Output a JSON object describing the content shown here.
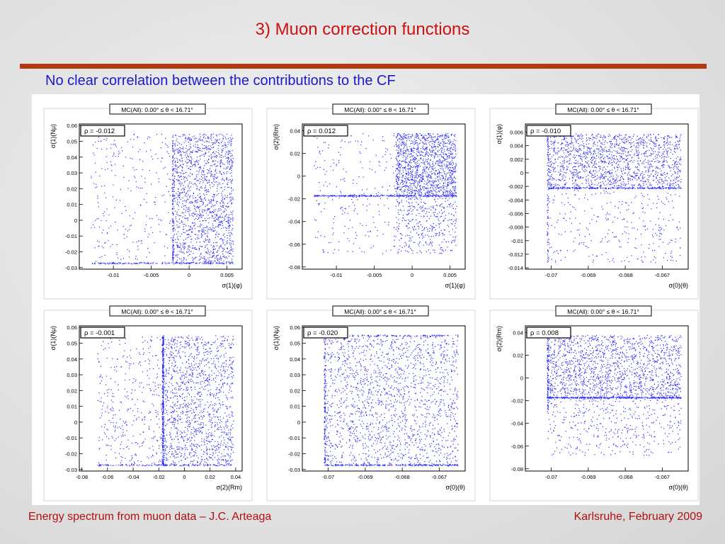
{
  "slide": {
    "title": "3) Muon correction functions",
    "subtitle": "No clear correlation between the contributions to the CF",
    "footer_left": "Energy spectrum from muon data – J.C. Arteaga",
    "footer_right": "Karlsruhe,  February 2009"
  },
  "colors": {
    "title": "#cc1111",
    "subtitle": "#1a1acc",
    "rule": "#b13a12",
    "points": "#2b2bff"
  },
  "chart_data": [
    {
      "type": "scatter",
      "header": "MC(All): 0.00° ≤ θ < 16.71°",
      "rho": "ρ = -0.012",
      "xlabel": "σ(1)(φ)",
      "ylabel": "σ(1)(Nμ)",
      "xlim": [
        -0.0145,
        0.007
      ],
      "ylim": [
        -0.031,
        0.061
      ],
      "xticks": [
        {
          "v": -0.01,
          "t": "-0.01"
        },
        {
          "v": -0.005,
          "t": "-0.005"
        },
        {
          "v": 0,
          "t": "0"
        },
        {
          "v": 0.005,
          "t": "0.005"
        }
      ],
      "yticks": [
        {
          "v": -0.03,
          "t": "-0.03"
        },
        {
          "v": -0.02,
          "t": "-0.02"
        },
        {
          "v": -0.01,
          "t": "-0.01"
        },
        {
          "v": 0,
          "t": "0"
        },
        {
          "v": 0.01,
          "t": "0.01"
        },
        {
          "v": 0.02,
          "t": "0.02"
        },
        {
          "v": 0.03,
          "t": "0.03"
        },
        {
          "v": 0.04,
          "t": "0.04"
        },
        {
          "v": 0.05,
          "t": "0.05"
        },
        {
          "v": 0.06,
          "t": "0.06"
        }
      ],
      "regions": [
        {
          "x": [
            -0.0022,
            0.0058
          ],
          "y": [
            -0.027,
            0.055
          ],
          "n": 1500
        },
        {
          "x": [
            -0.013,
            -0.0022
          ],
          "y": [
            -0.027,
            0.055
          ],
          "n": 260
        }
      ],
      "bands": [
        {
          "x": [
            -0.013,
            0.0058
          ],
          "y": -0.027,
          "n": 160
        },
        {
          "x": [
            -0.0022,
            -0.0022
          ],
          "y0": [
            -0.027,
            0.055
          ],
          "n": 120
        }
      ]
    },
    {
      "type": "scatter",
      "header": "MC(All): 0.00° ≤ θ < 16.71°",
      "rho": "ρ = 0.012",
      "xlabel": "σ(1)(φ)",
      "ylabel": "σ(2)(Rm)",
      "xlim": [
        -0.0145,
        0.007
      ],
      "ylim": [
        -0.082,
        0.046
      ],
      "xticks": [
        {
          "v": -0.01,
          "t": "-0.01"
        },
        {
          "v": -0.005,
          "t": "-0.005"
        },
        {
          "v": 0,
          "t": "0"
        },
        {
          "v": 0.005,
          "t": "0.005"
        }
      ],
      "yticks": [
        {
          "v": -0.08,
          "t": "-0.08"
        },
        {
          "v": -0.06,
          "t": "-0.06"
        },
        {
          "v": -0.04,
          "t": "-0.04"
        },
        {
          "v": -0.02,
          "t": "-0.02"
        },
        {
          "v": 0,
          "t": "0"
        },
        {
          "v": 0.02,
          "t": "0.02"
        },
        {
          "v": 0.04,
          "t": "0.04"
        }
      ],
      "regions": [
        {
          "x": [
            -0.0022,
            0.0058
          ],
          "y": [
            -0.017,
            0.038
          ],
          "n": 1300
        },
        {
          "x": [
            -0.0022,
            0.0058
          ],
          "y": [
            -0.068,
            -0.017
          ],
          "n": 380
        },
        {
          "x": [
            -0.013,
            -0.0022
          ],
          "y": [
            -0.068,
            0.038
          ],
          "n": 230
        }
      ],
      "bands": [
        {
          "x": [
            -0.013,
            0.0058
          ],
          "y": -0.017,
          "n": 300
        }
      ]
    },
    {
      "type": "scatter",
      "header": "MC(All): 0.00° ≤ θ < 16.71°",
      "rho": "ρ = -0.010",
      "xlabel": "σ(0)(θ)",
      "ylabel": "σ(1)(φ)",
      "xlim": [
        -0.0707,
        -0.0663
      ],
      "ylim": [
        -0.0142,
        0.0072
      ],
      "xticks": [
        {
          "v": -0.07,
          "t": "-0.07"
        },
        {
          "v": -0.069,
          "t": "-0.069"
        },
        {
          "v": -0.068,
          "t": "-0.068"
        },
        {
          "v": -0.067,
          "t": "-0.067"
        }
      ],
      "yticks": [
        {
          "v": -0.014,
          "t": "-0.014"
        },
        {
          "v": -0.012,
          "t": "-0.012"
        },
        {
          "v": -0.01,
          "t": "-0.01"
        },
        {
          "v": -0.008,
          "t": "-0.008"
        },
        {
          "v": -0.006,
          "t": "-0.006"
        },
        {
          "v": -0.004,
          "t": "-0.004"
        },
        {
          "v": -0.002,
          "t": "-0.002"
        },
        {
          "v": 0,
          "t": "0"
        },
        {
          "v": 0.002,
          "t": "0.002"
        },
        {
          "v": 0.004,
          "t": "0.004"
        },
        {
          "v": 0.006,
          "t": "0.006"
        }
      ],
      "regions": [
        {
          "x": [
            -0.0701,
            -0.0665
          ],
          "y": [
            -0.0022,
            0.0058
          ],
          "n": 1500
        },
        {
          "x": [
            -0.0701,
            -0.0665
          ],
          "y": [
            -0.0132,
            -0.0022
          ],
          "n": 300
        }
      ],
      "bands": [
        {
          "x": [
            -0.0701,
            -0.0665
          ],
          "y": -0.0022,
          "n": 220
        },
        {
          "x0": [
            -0.0701,
            -0.0701
          ],
          "y": [
            -0.0132,
            0.0058
          ],
          "n": 90
        }
      ]
    },
    {
      "type": "scatter",
      "header": "MC(All): 0.00° ≤ θ < 16.71°",
      "rho": "ρ = -0.001",
      "xlabel": "σ(2)(Rm)",
      "ylabel": "σ(1)(Nμ)",
      "xlim": [
        -0.082,
        0.045
      ],
      "ylim": [
        -0.031,
        0.061
      ],
      "xticks": [
        {
          "v": -0.08,
          "t": "-0.08"
        },
        {
          "v": -0.06,
          "t": "-0.06"
        },
        {
          "v": -0.04,
          "t": "-0.04"
        },
        {
          "v": -0.02,
          "t": "-0.02"
        },
        {
          "v": 0,
          "t": "0"
        },
        {
          "v": 0.02,
          "t": "0.02"
        },
        {
          "v": 0.04,
          "t": "0.04"
        }
      ],
      "yticks": [
        {
          "v": -0.03,
          "t": "-0.03"
        },
        {
          "v": -0.02,
          "t": "-0.02"
        },
        {
          "v": -0.01,
          "t": "-0.01"
        },
        {
          "v": 0,
          "t": "0"
        },
        {
          "v": 0.01,
          "t": "0.01"
        },
        {
          "v": 0.02,
          "t": "0.02"
        },
        {
          "v": 0.03,
          "t": "0.03"
        },
        {
          "v": 0.04,
          "t": "0.04"
        },
        {
          "v": 0.05,
          "t": "0.05"
        },
        {
          "v": 0.06,
          "t": "0.06"
        }
      ],
      "regions": [
        {
          "x": [
            -0.017,
            0.038
          ],
          "y": [
            -0.027,
            0.055
          ],
          "n": 1300
        },
        {
          "x": [
            -0.068,
            -0.017
          ],
          "y": [
            -0.027,
            0.055
          ],
          "n": 350
        }
      ],
      "bands": [
        {
          "x0": [
            -0.017,
            -0.017
          ],
          "y": [
            -0.027,
            0.055
          ],
          "n": 380
        },
        {
          "x": [
            -0.068,
            0.038
          ],
          "y": -0.027,
          "n": 150
        }
      ]
    },
    {
      "type": "scatter",
      "header": "MC(All): 0.00° ≤ θ < 16.71°",
      "rho": "ρ = -0.020",
      "xlabel": "σ(0)(θ)",
      "ylabel": "σ(1)(Nμ)",
      "xlim": [
        -0.0707,
        -0.0663
      ],
      "ylim": [
        -0.031,
        0.061
      ],
      "xticks": [
        {
          "v": -0.07,
          "t": "-0.07"
        },
        {
          "v": -0.069,
          "t": "-0.069"
        },
        {
          "v": -0.068,
          "t": "-0.068"
        },
        {
          "v": -0.067,
          "t": "-0.067"
        }
      ],
      "yticks": [
        {
          "v": -0.03,
          "t": "-0.03"
        },
        {
          "v": -0.02,
          "t": "-0.02"
        },
        {
          "v": -0.01,
          "t": "-0.01"
        },
        {
          "v": 0,
          "t": "0"
        },
        {
          "v": 0.01,
          "t": "0.01"
        },
        {
          "v": 0.02,
          "t": "0.02"
        },
        {
          "v": 0.03,
          "t": "0.03"
        },
        {
          "v": 0.04,
          "t": "0.04"
        },
        {
          "v": 0.05,
          "t": "0.05"
        },
        {
          "v": 0.06,
          "t": "0.06"
        }
      ],
      "regions": [
        {
          "x": [
            -0.0701,
            -0.0665
          ],
          "y": [
            -0.027,
            0.055
          ],
          "n": 1700
        }
      ],
      "bands": [
        {
          "x": [
            -0.0701,
            -0.0665
          ],
          "y": -0.027,
          "n": 220
        },
        {
          "x": [
            -0.0701,
            -0.0665
          ],
          "y": 0.055,
          "n": 120
        },
        {
          "x0": [
            -0.0701,
            -0.0701
          ],
          "y": [
            -0.027,
            0.055
          ],
          "n": 140
        }
      ]
    },
    {
      "type": "scatter",
      "header": "MC(All): 0.00° ≤ θ < 16.71°",
      "rho": "ρ = 0.008",
      "xlabel": "σ(0)(θ)",
      "ylabel": "σ(2)(Rm)",
      "xlim": [
        -0.0707,
        -0.0663
      ],
      "ylim": [
        -0.082,
        0.046
      ],
      "xticks": [
        {
          "v": -0.07,
          "t": "-0.07"
        },
        {
          "v": -0.069,
          "t": "-0.069"
        },
        {
          "v": -0.068,
          "t": "-0.068"
        },
        {
          "v": -0.067,
          "t": "-0.067"
        }
      ],
      "yticks": [
        {
          "v": -0.08,
          "t": "-0.08"
        },
        {
          "v": -0.06,
          "t": "-0.06"
        },
        {
          "v": -0.04,
          "t": "-0.04"
        },
        {
          "v": -0.02,
          "t": "-0.02"
        },
        {
          "v": 0,
          "t": "0"
        },
        {
          "v": 0.02,
          "t": "0.02"
        },
        {
          "v": 0.04,
          "t": "0.04"
        }
      ],
      "regions": [
        {
          "x": [
            -0.0701,
            -0.0665
          ],
          "y": [
            -0.017,
            0.038
          ],
          "n": 1500
        },
        {
          "x": [
            -0.0701,
            -0.0665
          ],
          "y": [
            -0.068,
            -0.017
          ],
          "n": 420
        }
      ],
      "bands": [
        {
          "x": [
            -0.0701,
            -0.0665
          ],
          "y": -0.017,
          "n": 380
        },
        {
          "x0": [
            -0.0701,
            -0.0701
          ],
          "y": [
            -0.03,
            0.038
          ],
          "n": 120
        }
      ]
    }
  ]
}
